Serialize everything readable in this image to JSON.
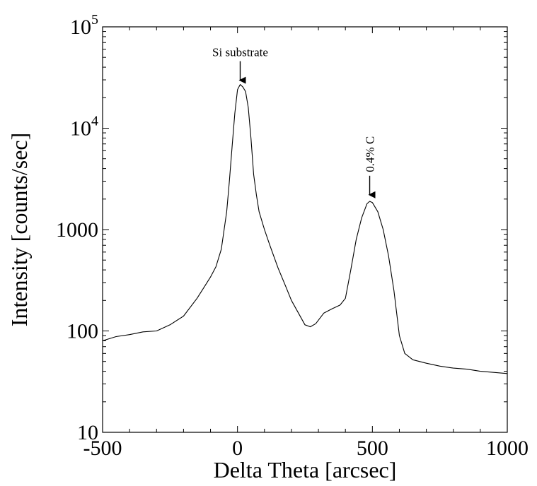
{
  "chart_data": {
    "type": "line",
    "title": "",
    "xlabel": "Delta Theta [arcsec]",
    "ylabel": "Intensity [counts/sec]",
    "xlim": [
      -500,
      1000
    ],
    "ylim": [
      10,
      100000
    ],
    "yscale": "log",
    "grid": false,
    "x_ticks": [
      {
        "value": -500,
        "label": "-500"
      },
      {
        "value": 0,
        "label": "0"
      },
      {
        "value": 500,
        "label": "500"
      },
      {
        "value": 1000,
        "label": "1000"
      }
    ],
    "y_ticks": [
      {
        "value": 10,
        "label": "10"
      },
      {
        "value": 100,
        "label": "100"
      },
      {
        "value": 1000,
        "label": "1000"
      },
      {
        "value": 10000,
        "base": "10",
        "exp": "4"
      },
      {
        "value": 100000,
        "base": "10",
        "exp": "5"
      }
    ],
    "annotations": [
      {
        "text": "Si substrate",
        "x": 10,
        "y": 27000,
        "orientation": "horizontal"
      },
      {
        "text": "0.4% C",
        "x": 490,
        "y": 2000,
        "orientation": "vertical"
      }
    ],
    "series": [
      {
        "color": "#000000",
        "points": [
          [
            -500,
            80
          ],
          [
            -450,
            88
          ],
          [
            -400,
            92
          ],
          [
            -350,
            98
          ],
          [
            -300,
            100
          ],
          [
            -250,
            115
          ],
          [
            -200,
            140
          ],
          [
            -150,
            210
          ],
          [
            -120,
            280
          ],
          [
            -100,
            340
          ],
          [
            -80,
            430
          ],
          [
            -60,
            640
          ],
          [
            -40,
            1500
          ],
          [
            -30,
            3000
          ],
          [
            -20,
            6500
          ],
          [
            -10,
            14000
          ],
          [
            0,
            24000
          ],
          [
            10,
            27000
          ],
          [
            20,
            25500
          ],
          [
            30,
            23000
          ],
          [
            40,
            16000
          ],
          [
            50,
            8000
          ],
          [
            60,
            3500
          ],
          [
            70,
            2200
          ],
          [
            80,
            1500
          ],
          [
            100,
            1000
          ],
          [
            120,
            700
          ],
          [
            150,
            420
          ],
          [
            180,
            270
          ],
          [
            200,
            200
          ],
          [
            220,
            160
          ],
          [
            250,
            115
          ],
          [
            270,
            110
          ],
          [
            290,
            118
          ],
          [
            320,
            150
          ],
          [
            350,
            165
          ],
          [
            380,
            180
          ],
          [
            400,
            210
          ],
          [
            420,
            400
          ],
          [
            440,
            800
          ],
          [
            460,
            1300
          ],
          [
            480,
            1800
          ],
          [
            490,
            1900
          ],
          [
            500,
            1850
          ],
          [
            520,
            1500
          ],
          [
            540,
            1000
          ],
          [
            560,
            550
          ],
          [
            580,
            250
          ],
          [
            600,
            90
          ],
          [
            620,
            60
          ],
          [
            650,
            52
          ],
          [
            700,
            48
          ],
          [
            750,
            45
          ],
          [
            800,
            43
          ],
          [
            850,
            42
          ],
          [
            900,
            40
          ],
          [
            950,
            39
          ],
          [
            1000,
            38
          ]
        ]
      }
    ]
  }
}
